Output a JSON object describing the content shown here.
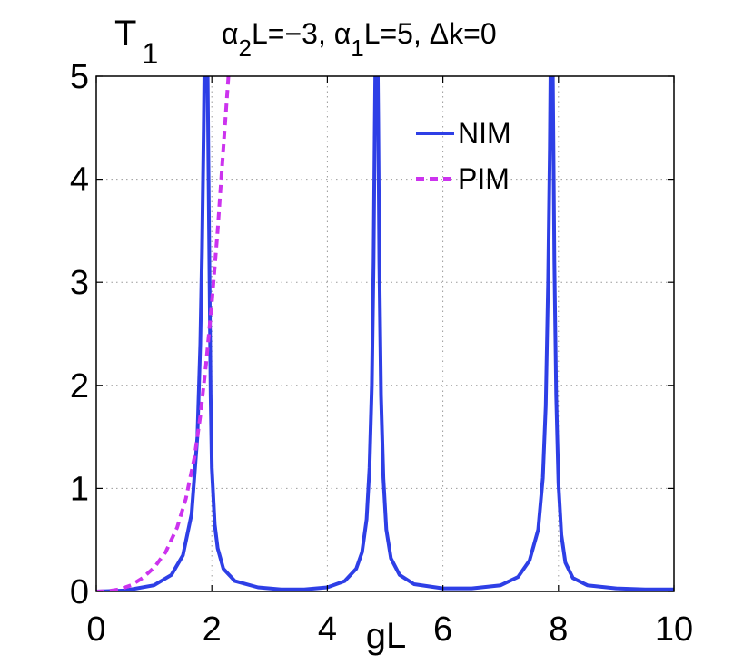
{
  "chart_data": {
    "type": "line",
    "ylabel": {
      "main": "T",
      "sub": "1"
    },
    "title_parts": [
      {
        "text": "α",
        "sub": false
      },
      {
        "text": "2",
        "sub": true
      },
      {
        "text": "L=−3, α",
        "sub": false
      },
      {
        "text": "1",
        "sub": true
      },
      {
        "text": "L=5, Δk=0",
        "sub": false
      }
    ],
    "xlabel": "gL",
    "xlim": [
      0,
      10
    ],
    "ylim": [
      0,
      5
    ],
    "xticks": [
      0,
      2,
      4,
      6,
      8,
      10
    ],
    "yticks": [
      0,
      1,
      2,
      3,
      4,
      5
    ],
    "grid": true,
    "legend_position": "top-right",
    "series": [
      {
        "name": "NIM",
        "color": "#2e3fe6",
        "style": "solid",
        "x": [
          0,
          0.5,
          1.0,
          1.3,
          1.5,
          1.65,
          1.75,
          1.8,
          1.83,
          1.86,
          1.88,
          1.9,
          1.92,
          1.94,
          1.96,
          1.98,
          2.0,
          2.05,
          2.1,
          2.2,
          2.4,
          2.8,
          3.2,
          3.6,
          4.0,
          4.3,
          4.5,
          4.6,
          4.68,
          4.73,
          4.77,
          4.8,
          4.82,
          4.84,
          4.86,
          4.88,
          4.9,
          4.93,
          4.97,
          5.02,
          5.1,
          5.25,
          5.5,
          6.0,
          6.5,
          7.0,
          7.3,
          7.5,
          7.65,
          7.73,
          7.78,
          7.82,
          7.85,
          7.87,
          7.89,
          7.91,
          7.93,
          7.96,
          8.0,
          8.05,
          8.12,
          8.25,
          8.5,
          9.0,
          9.5,
          10.0
        ],
        "y": [
          0,
          0.01,
          0.06,
          0.16,
          0.35,
          0.75,
          1.5,
          2.4,
          3.3,
          4.5,
          5.5,
          6.0,
          5.5,
          4.2,
          3.0,
          1.9,
          1.2,
          0.65,
          0.42,
          0.22,
          0.1,
          0.04,
          0.02,
          0.02,
          0.04,
          0.1,
          0.22,
          0.38,
          0.7,
          1.2,
          2.0,
          3.2,
          4.5,
          5.6,
          5.8,
          4.6,
          3.2,
          1.9,
          1.1,
          0.6,
          0.32,
          0.16,
          0.07,
          0.03,
          0.03,
          0.06,
          0.14,
          0.3,
          0.6,
          1.1,
          1.8,
          3.0,
          4.3,
          5.6,
          5.8,
          4.5,
          3.2,
          1.9,
          1.05,
          0.55,
          0.28,
          0.13,
          0.06,
          0.03,
          0.02,
          0.02
        ]
      },
      {
        "name": "PIM",
        "color": "#cc33ee",
        "style": "dashed",
        "x": [
          0,
          0.2,
          0.4,
          0.6,
          0.8,
          1.0,
          1.2,
          1.4,
          1.55,
          1.7,
          1.8,
          1.9,
          2.0,
          2.1,
          2.2,
          2.25,
          2.3
        ],
        "y": [
          0,
          0.004,
          0.02,
          0.06,
          0.13,
          0.23,
          0.38,
          0.62,
          0.9,
          1.3,
          1.7,
          2.2,
          2.8,
          3.5,
          4.3,
          4.7,
          5.1
        ]
      }
    ]
  }
}
